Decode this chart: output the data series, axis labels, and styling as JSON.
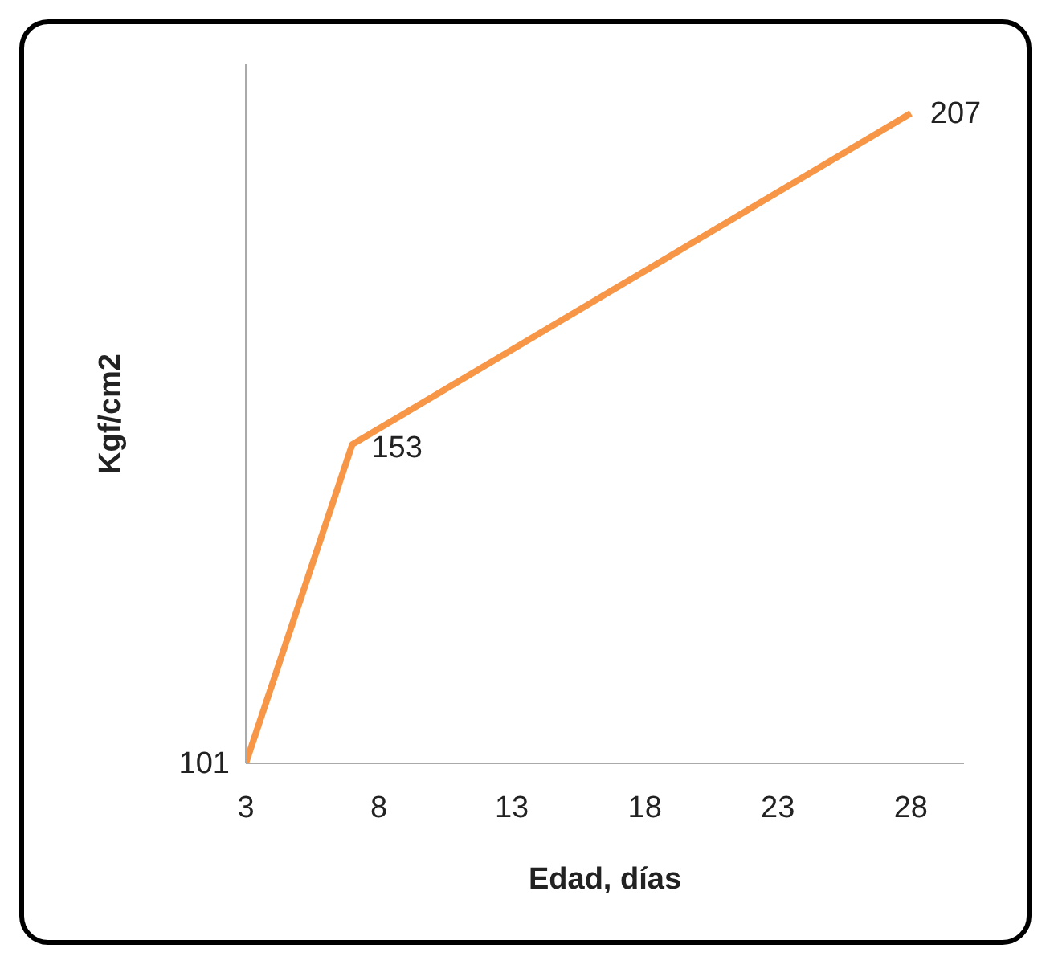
{
  "chart_data": {
    "type": "line",
    "xlabel": "Edad, días",
    "ylabel": "Kgf/cm2",
    "x": [
      3,
      7,
      28
    ],
    "series": [
      {
        "color": "#f79646",
        "values": [
          101,
          153,
          207
        ]
      }
    ],
    "xlim": [
      3,
      30
    ],
    "xticks": [
      3,
      8,
      13,
      18,
      23,
      28
    ],
    "ylim": [
      101,
      215
    ],
    "tick_labels": "x",
    "data_labels": true,
    "grid": false,
    "legend": false,
    "marker": "none",
    "line_style": "solid"
  }
}
